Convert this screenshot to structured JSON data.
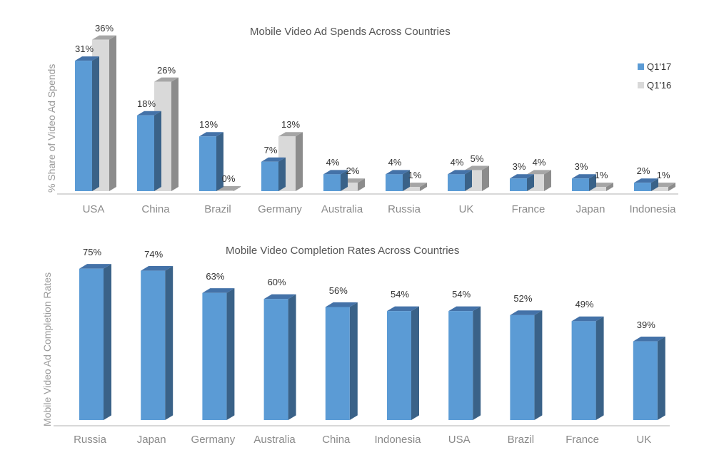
{
  "colors": {
    "q117_front": "#5b9bd5",
    "q117_top": "#4472a8",
    "q117_side": "#3a6288",
    "q116_front": "#d9d9d9",
    "q116_top": "#a6a6a6",
    "q116_side": "#8c8c8c",
    "axis": "#d8d8d8"
  },
  "chart_data": [
    {
      "type": "bar",
      "title": "Mobile Video Ad Spends Across Countries",
      "xlabel": "",
      "ylabel": "% Share of Video Ad Spends",
      "categories": [
        "USA",
        "China",
        "Brazil",
        "Germany",
        "Australia",
        "Russia",
        "UK",
        "France",
        "Japan",
        "Indonesia"
      ],
      "series": [
        {
          "name": "Q1'17",
          "values": [
            31,
            18,
            13,
            7,
            4,
            4,
            4,
            3,
            3,
            2
          ]
        },
        {
          "name": "Q1'16",
          "values": [
            36,
            26,
            0,
            13,
            2,
            1,
            5,
            4,
            1,
            1
          ]
        }
      ],
      "value_labels": {
        "Q1'17": [
          "31%",
          "18%",
          "13%",
          "7%",
          "4%",
          "4%",
          "4%",
          "3%",
          "3%",
          "2%"
        ],
        "Q1'16": [
          "36%",
          "26%",
          "0%",
          "13%",
          "2%",
          "1%",
          "5%",
          "4%",
          "1%",
          "1%"
        ]
      },
      "legend": [
        "Q1'17",
        "Q1'16"
      ],
      "legend_position": "top-right",
      "grid": false,
      "ylim": [
        0,
        40
      ],
      "style": "3d-clustered-column"
    },
    {
      "type": "bar",
      "title": "Mobile Video Completion Rates Across Countries",
      "xlabel": "",
      "ylabel": "Mobile Video Ad Completion Rates",
      "categories": [
        "Russia",
        "Japan",
        "Germany",
        "Australia",
        "China",
        "Indonesia",
        "USA",
        "Brazil",
        "France",
        "UK"
      ],
      "values": [
        75,
        74,
        63,
        60,
        56,
        54,
        54,
        52,
        49,
        39
      ],
      "value_labels": [
        "75%",
        "74%",
        "63%",
        "60%",
        "56%",
        "54%",
        "54%",
        "52%",
        "49%",
        "39%"
      ],
      "legend": [],
      "grid": false,
      "ylim": [
        0,
        80
      ],
      "style": "3d-column"
    }
  ]
}
